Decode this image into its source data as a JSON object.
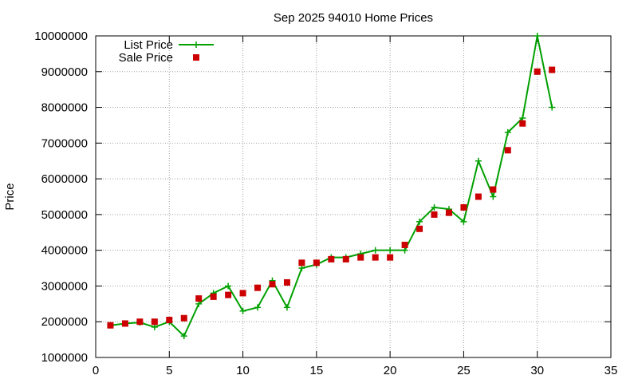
{
  "chart_data": {
    "type": "line",
    "title": "Sep 2025 94010 Home Prices",
    "xlabel": "",
    "ylabel": "Price",
    "xlim": [
      0,
      35
    ],
    "ylim": [
      1000000,
      10000000
    ],
    "xticks": [
      "0",
      "5",
      "10",
      "15",
      "20",
      "25",
      "30",
      "35"
    ],
    "yticks": [
      "1000000",
      "2000000",
      "3000000",
      "4000000",
      "5000000",
      "6000000",
      "7000000",
      "8000000",
      "9000000",
      "10000000"
    ],
    "grid": true,
    "legend_position": "top-left",
    "series": [
      {
        "name": "List Price",
        "style": "line+cross",
        "color": "#00a000",
        "x": [
          1,
          2,
          3,
          4,
          5,
          6,
          7,
          8,
          9,
          10,
          11,
          12,
          13,
          14,
          15,
          16,
          17,
          18,
          19,
          20,
          21,
          22,
          23,
          24,
          25,
          26,
          27,
          28,
          29,
          30,
          31
        ],
        "y": [
          1900000,
          1950000,
          1980000,
          1850000,
          2000000,
          1600000,
          2500000,
          2800000,
          3000000,
          2300000,
          2400000,
          3150000,
          2400000,
          3500000,
          3600000,
          3800000,
          3800000,
          3900000,
          4000000,
          4000000,
          4000000,
          4800000,
          5200000,
          5150000,
          4800000,
          6500000,
          5500000,
          7300000,
          7700000,
          10000000,
          8000000
        ]
      },
      {
        "name": "Sale Price",
        "style": "square-points",
        "color": "#cc0000",
        "x": [
          1,
          2,
          3,
          4,
          5,
          6,
          7,
          8,
          9,
          10,
          11,
          12,
          13,
          14,
          15,
          16,
          17,
          18,
          19,
          20,
          21,
          22,
          23,
          24,
          25,
          26,
          27,
          28,
          29,
          30,
          31
        ],
        "y": [
          1900000,
          1950000,
          2000000,
          2000000,
          2050000,
          2100000,
          2650000,
          2700000,
          2750000,
          2800000,
          2950000,
          3050000,
          3100000,
          3650000,
          3650000,
          3750000,
          3750000,
          3800000,
          3800000,
          3800000,
          4150000,
          4600000,
          5000000,
          5050000,
          5200000,
          5500000,
          5700000,
          6800000,
          7550000,
          9000000,
          9050000
        ]
      }
    ]
  }
}
